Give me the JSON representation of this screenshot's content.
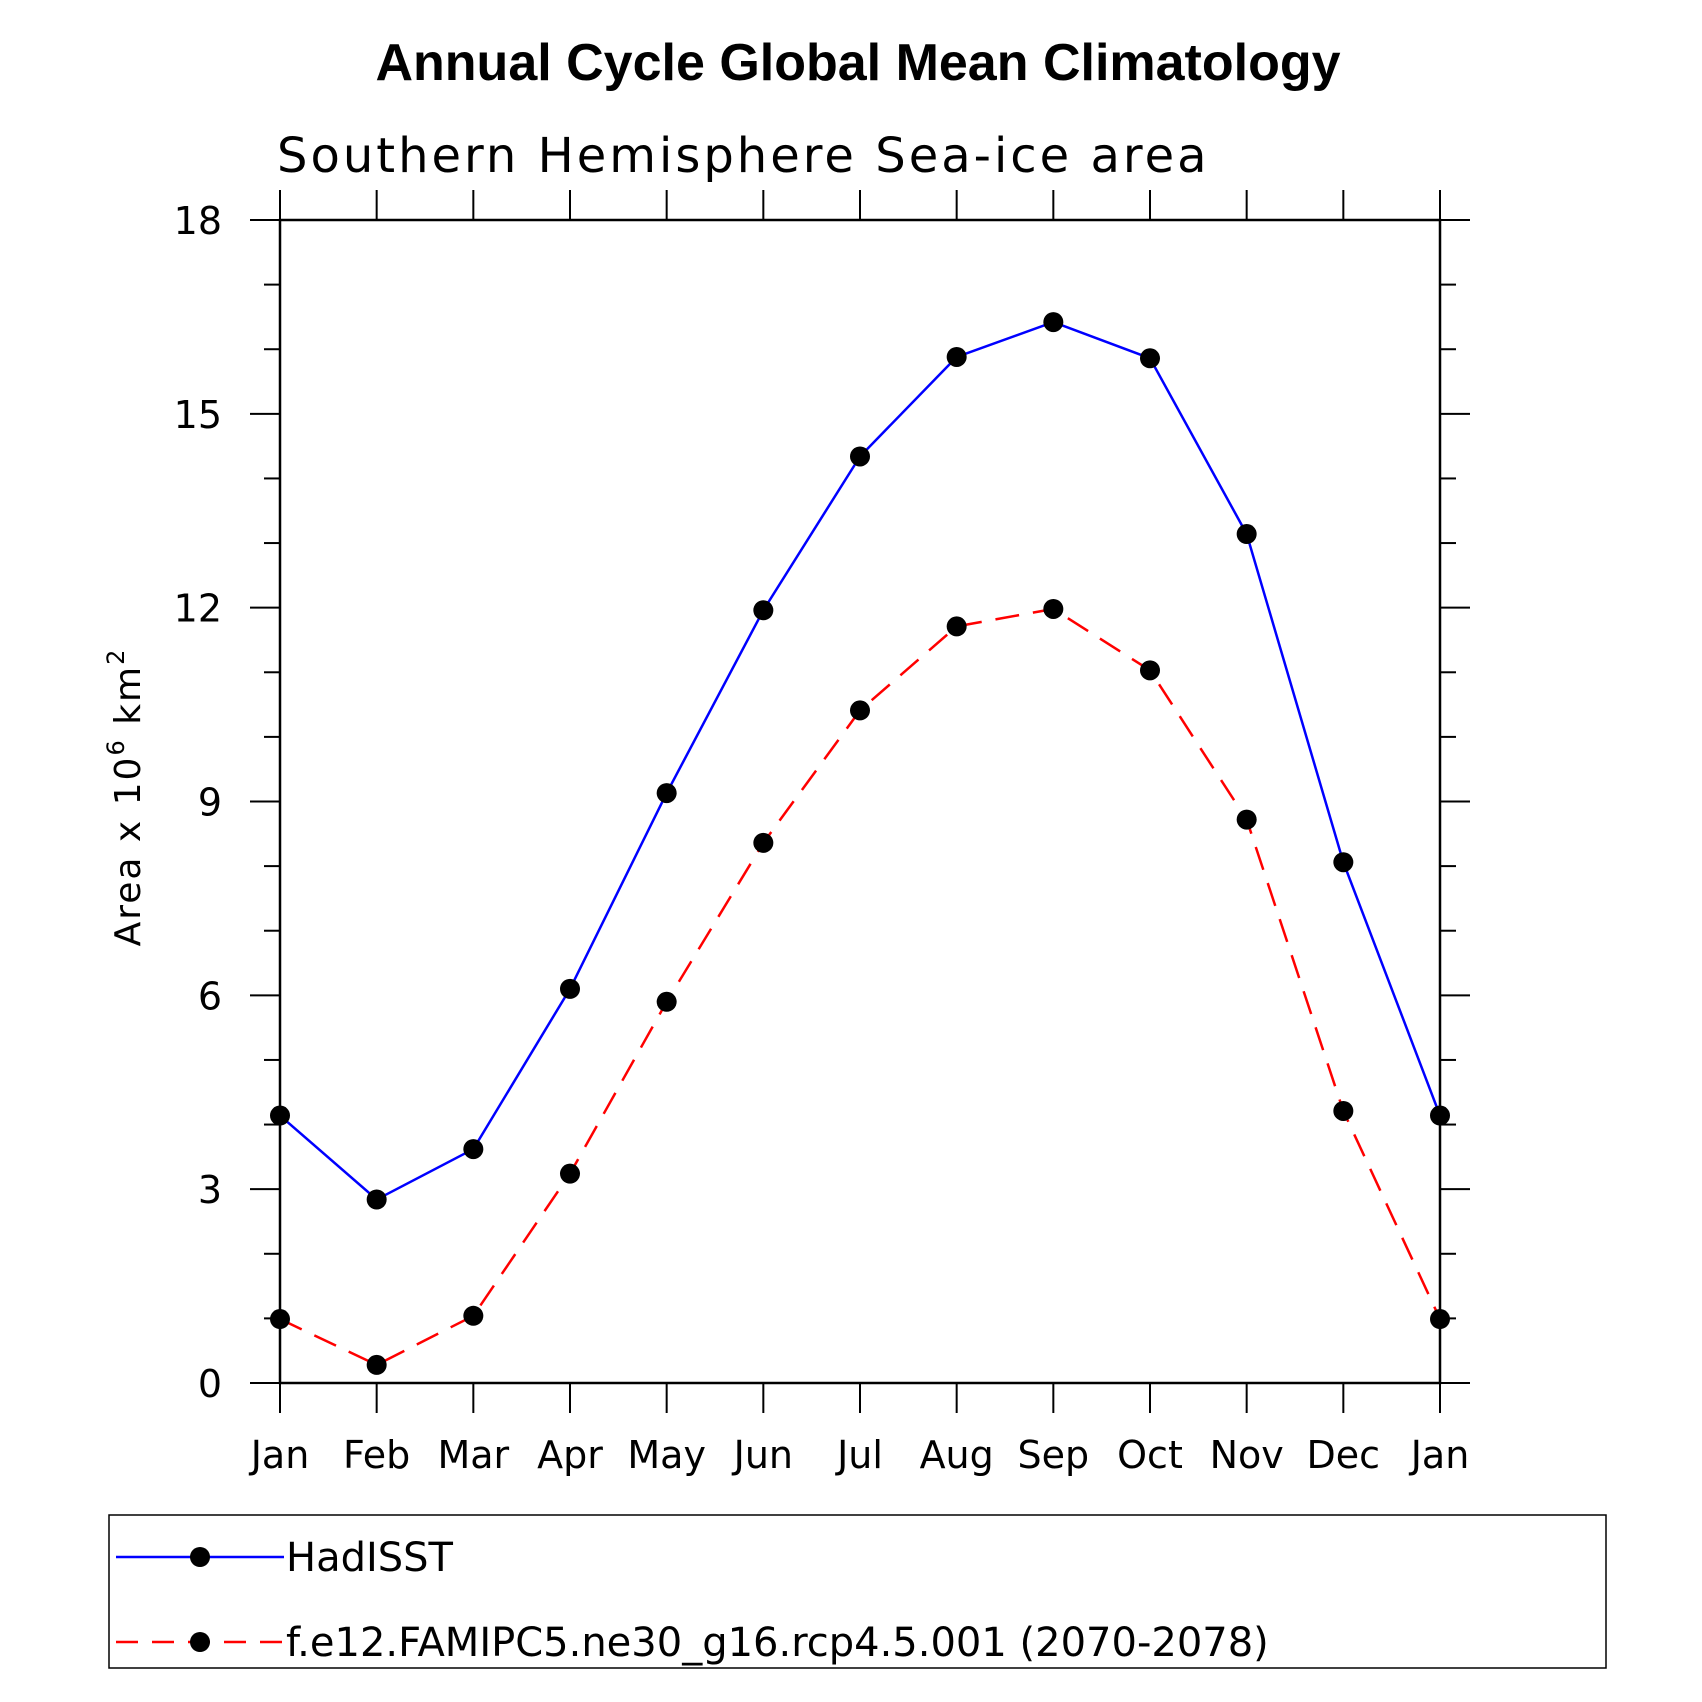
{
  "chart_data": {
    "type": "line",
    "title": "Annual Cycle Global Mean Climatology",
    "subtitle": "Southern Hemisphere Sea-ice area",
    "ylabel_text": "Area x 10",
    "ylabel_exp1": "6",
    "ylabel_unit": " km",
    "ylabel_exp2": "2",
    "xlabel": "",
    "categories": [
      "Jan",
      "Feb",
      "Mar",
      "Apr",
      "May",
      "Jun",
      "Jul",
      "Aug",
      "Sep",
      "Oct",
      "Nov",
      "Dec",
      "Jan"
    ],
    "ylim": [
      0,
      18
    ],
    "yticks": [
      0,
      3,
      6,
      9,
      12,
      15,
      18
    ],
    "y_minor_step": 1,
    "grid": false,
    "legend_position": "bottom",
    "series": [
      {
        "name": "HadISST",
        "color": "#0000ff",
        "dash": "solid",
        "marker": "filled-circle",
        "values": [
          4.14,
          2.84,
          3.62,
          6.1,
          9.13,
          11.96,
          14.34,
          15.88,
          16.42,
          15.86,
          13.14,
          8.06,
          4.14
        ]
      },
      {
        "name": "f.e12.FAMIPC5.ne30_g16.rcp4.5.001 (2070-2078)",
        "color": "#ff0000",
        "dash": "dashed",
        "marker": "filled-circle",
        "values": [
          0.99,
          0.28,
          1.04,
          3.24,
          5.9,
          8.36,
          10.41,
          11.71,
          11.98,
          11.03,
          8.72,
          4.21,
          0.99
        ]
      }
    ]
  }
}
